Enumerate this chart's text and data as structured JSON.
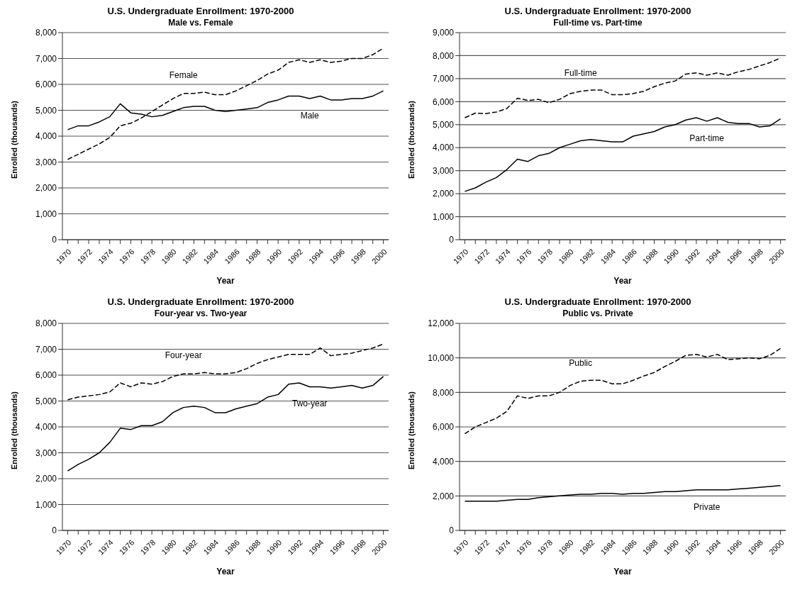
{
  "chart_data": [
    {
      "type": "line",
      "title": "U.S. Undergraduate Enrollment: 1970-2000",
      "subtitle": "Male vs. Female",
      "xlabel": "Year",
      "ylabel": "Enrolled (thousands)",
      "categories": [
        "1970",
        null,
        "1972",
        null,
        "1974",
        null,
        "1976",
        null,
        "1978",
        null,
        "1980",
        null,
        "1982",
        null,
        "1984",
        null,
        "1986",
        null,
        "1988",
        null,
        "1990",
        null,
        "1992",
        null,
        "1994",
        null,
        "1996",
        null,
        "1998",
        null,
        "2000"
      ],
      "ylim": [
        0,
        8000
      ],
      "yticks": [
        {
          "value": 0,
          "label": "0"
        },
        {
          "value": 1000,
          "label": "1,000"
        },
        {
          "value": 2000,
          "label": "2,000"
        },
        {
          "value": 3000,
          "label": "3,000"
        },
        {
          "value": 4000,
          "label": "4,000"
        },
        {
          "value": 5000,
          "label": "5,000"
        },
        {
          "value": 6000,
          "label": "6,000"
        },
        {
          "value": 7000,
          "label": "7,000"
        },
        {
          "value": 8000,
          "label": "8,000"
        }
      ],
      "grid": "y",
      "legend": false,
      "marker": "none",
      "series": [
        {
          "name": "Female",
          "color": "#000000",
          "line_style": "dashed",
          "values": [
            3100,
            3300,
            3500,
            3700,
            3950,
            4400,
            4500,
            4700,
            4950,
            5200,
            5450,
            5650,
            5650,
            5700,
            5600,
            5600,
            5750,
            5950,
            6150,
            6400,
            6550,
            6850,
            6950,
            6850,
            6950,
            6850,
            6900,
            7000,
            7000,
            7150,
            7400
          ]
        },
        {
          "name": "Male",
          "color": "#000000",
          "line_style": "solid",
          "values": [
            4250,
            4400,
            4400,
            4550,
            4750,
            5250,
            4900,
            4850,
            4750,
            4800,
            4950,
            5100,
            5150,
            5150,
            5000,
            4950,
            5000,
            5050,
            5100,
            5300,
            5400,
            5550,
            5550,
            5450,
            5550,
            5400,
            5400,
            5450,
            5450,
            5550,
            5750
          ]
        }
      ]
    },
    {
      "type": "line",
      "title": "U.S. Undergraduate Enrollment: 1970-2000",
      "subtitle": "Full-time vs. Part-time",
      "xlabel": "Year",
      "ylabel": "Enrolled (thousands)",
      "categories": [
        "1970",
        null,
        "1972",
        null,
        "1974",
        null,
        "1976",
        null,
        "1978",
        null,
        "1980",
        null,
        "1982",
        null,
        "1984",
        null,
        "1986",
        null,
        "1988",
        null,
        "1990",
        null,
        "1992",
        null,
        "1994",
        null,
        "1996",
        null,
        "1998",
        null,
        "2000"
      ],
      "ylim": [
        0,
        9000
      ],
      "yticks": [
        {
          "value": 0,
          "label": "0"
        },
        {
          "value": 1000,
          "label": "1,000"
        },
        {
          "value": 2000,
          "label": "2,000"
        },
        {
          "value": 3000,
          "label": "3,000"
        },
        {
          "value": 4000,
          "label": "4,000"
        },
        {
          "value": 5000,
          "label": "5,000"
        },
        {
          "value": 6000,
          "label": "6,000"
        },
        {
          "value": 7000,
          "label": "7,000"
        },
        {
          "value": 8000,
          "label": "8,000"
        },
        {
          "value": 9000,
          "label": "9,000"
        }
      ],
      "grid": "y",
      "legend": false,
      "marker": "none",
      "series": [
        {
          "name": "Full-time",
          "color": "#000000",
          "line_style": "dashed",
          "values": [
            5300,
            5500,
            5480,
            5550,
            5700,
            6150,
            6050,
            6100,
            5950,
            6100,
            6350,
            6450,
            6500,
            6500,
            6300,
            6300,
            6350,
            6450,
            6650,
            6800,
            6900,
            7200,
            7250,
            7150,
            7250,
            7150,
            7300,
            7400,
            7550,
            7700,
            7900
          ]
        },
        {
          "name": "Part-time",
          "color": "#000000",
          "line_style": "solid",
          "values": [
            2100,
            2250,
            2500,
            2700,
            3050,
            3500,
            3400,
            3650,
            3750,
            4000,
            4150,
            4300,
            4350,
            4300,
            4250,
            4250,
            4500,
            4600,
            4700,
            4900,
            5000,
            5200,
            5300,
            5150,
            5300,
            5100,
            5050,
            5050,
            4900,
            4950,
            5250
          ]
        }
      ]
    },
    {
      "type": "line",
      "title": "U.S. Undergraduate Enrollment: 1970-2000",
      "subtitle": "Four-year vs. Two-year",
      "xlabel": "Year",
      "ylabel": "Enrolled (thousands)",
      "categories": [
        "1970",
        null,
        "1972",
        null,
        "1974",
        null,
        "1976",
        null,
        "1978",
        null,
        "1980",
        null,
        "1982",
        null,
        "1984",
        null,
        "1986",
        null,
        "1988",
        null,
        "1990",
        null,
        "1992",
        null,
        "1994",
        null,
        "1996",
        null,
        "1998",
        null,
        "2000"
      ],
      "ylim": [
        0,
        8000
      ],
      "yticks": [
        {
          "value": 0,
          "label": "0"
        },
        {
          "value": 1000,
          "label": "1,000"
        },
        {
          "value": 2000,
          "label": "2,000"
        },
        {
          "value": 3000,
          "label": "3,000"
        },
        {
          "value": 4000,
          "label": "4,000"
        },
        {
          "value": 5000,
          "label": "5,000"
        },
        {
          "value": 6000,
          "label": "6,000"
        },
        {
          "value": 7000,
          "label": "7,000"
        },
        {
          "value": 8000,
          "label": "8,000"
        }
      ],
      "grid": "y",
      "legend": false,
      "marker": "none",
      "series": [
        {
          "name": "Four-year",
          "color": "#000000",
          "line_style": "dashed",
          "values": [
            5050,
            5150,
            5200,
            5250,
            5350,
            5700,
            5550,
            5700,
            5650,
            5750,
            5950,
            6050,
            6050,
            6100,
            6050,
            6050,
            6100,
            6250,
            6450,
            6600,
            6700,
            6800,
            6800,
            6800,
            7050,
            6750,
            6800,
            6850,
            6950,
            7050,
            7200
          ]
        },
        {
          "name": "Two-year",
          "color": "#000000",
          "line_style": "solid",
          "values": [
            2300,
            2550,
            2750,
            3000,
            3400,
            3950,
            3900,
            4050,
            4050,
            4200,
            4550,
            4750,
            4800,
            4750,
            4550,
            4550,
            4700,
            4800,
            4900,
            5150,
            5250,
            5650,
            5700,
            5550,
            5550,
            5500,
            5550,
            5600,
            5500,
            5600,
            5950
          ]
        }
      ]
    },
    {
      "type": "line",
      "title": "U.S. Undergraduate Enrollment: 1970-2000",
      "subtitle": "Public vs. Private",
      "xlabel": "Year",
      "ylabel": "Enrolled (thousands)",
      "categories": [
        "1970",
        null,
        "1972",
        null,
        "1974",
        null,
        "1976",
        null,
        "1978",
        null,
        "1980",
        null,
        "1982",
        null,
        "1984",
        null,
        "1986",
        null,
        "1988",
        null,
        "1990",
        null,
        "1992",
        null,
        "1994",
        null,
        "1996",
        null,
        "1998",
        null,
        "2000"
      ],
      "ylim": [
        0,
        12000
      ],
      "yticks": [
        {
          "value": 0,
          "label": "0"
        },
        {
          "value": 2000,
          "label": "2,000"
        },
        {
          "value": 4000,
          "label": "4,000"
        },
        {
          "value": 6000,
          "label": "6,000"
        },
        {
          "value": 8000,
          "label": "8,000"
        },
        {
          "value": 10000,
          "label": "10,000"
        },
        {
          "value": 12000,
          "label": "12,000"
        }
      ],
      "grid": "y",
      "legend": false,
      "marker": "none",
      "series": [
        {
          "name": "Public",
          "color": "#000000",
          "line_style": "dashed",
          "values": [
            5600,
            6000,
            6250,
            6500,
            6900,
            7800,
            7650,
            7800,
            7800,
            8000,
            8400,
            8650,
            8700,
            8700,
            8500,
            8500,
            8700,
            8950,
            9150,
            9500,
            9800,
            10150,
            10200,
            10050,
            10200,
            9900,
            9950,
            10000,
            9950,
            10150,
            10550
          ]
        },
        {
          "name": "Private",
          "color": "#000000",
          "line_style": "solid",
          "values": [
            1700,
            1700,
            1700,
            1700,
            1750,
            1800,
            1800,
            1900,
            1950,
            2000,
            2050,
            2100,
            2100,
            2150,
            2150,
            2100,
            2150,
            2150,
            2200,
            2250,
            2250,
            2300,
            2350,
            2350,
            2350,
            2350,
            2400,
            2450,
            2500,
            2550,
            2600
          ]
        }
      ]
    }
  ]
}
